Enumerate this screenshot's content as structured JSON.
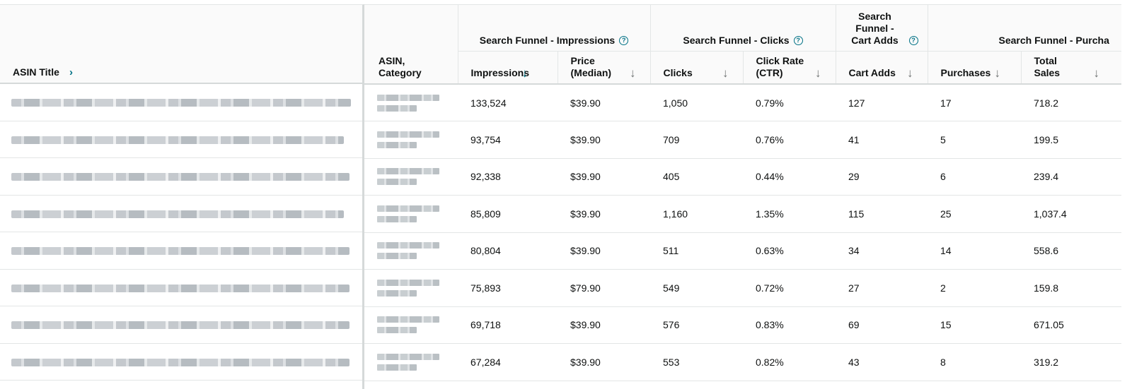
{
  "table": {
    "asin_title_header": "ASIN Title",
    "asin_category_header": "ASIN, Category",
    "groups": [
      {
        "label": "Search Funnel - Impressions"
      },
      {
        "label": "Search Funnel - Clicks"
      },
      {
        "label": "Search Funnel - Cart Adds"
      },
      {
        "label": "Search Funnel - Purcha"
      }
    ],
    "columns": [
      {
        "label": "Impressions"
      },
      {
        "label": "Price (Median)"
      },
      {
        "label": "Clicks"
      },
      {
        "label": "Click Rate (CTR)"
      },
      {
        "label": "Cart Adds"
      },
      {
        "label": "Purchases"
      },
      {
        "label": "Total Sales"
      }
    ],
    "title_blur_widths": [
      480,
      470,
      478,
      470,
      478,
      478,
      478,
      478
    ],
    "rows": [
      {
        "impressions": "133,524",
        "price": "$39.90",
        "clicks": "1,050",
        "ctr": "0.79%",
        "cart_adds": "127",
        "purchases": "17",
        "total_sales": "718.2"
      },
      {
        "impressions": "93,754",
        "price": "$39.90",
        "clicks": "709",
        "ctr": "0.76%",
        "cart_adds": "41",
        "purchases": "5",
        "total_sales": "199.5"
      },
      {
        "impressions": "92,338",
        "price": "$39.90",
        "clicks": "405",
        "ctr": "0.44%",
        "cart_adds": "29",
        "purchases": "6",
        "total_sales": "239.4"
      },
      {
        "impressions": "85,809",
        "price": "$39.90",
        "clicks": "1,160",
        "ctr": "1.35%",
        "cart_adds": "115",
        "purchases": "25",
        "total_sales": "1,037.4"
      },
      {
        "impressions": "80,804",
        "price": "$39.90",
        "clicks": "511",
        "ctr": "0.63%",
        "cart_adds": "34",
        "purchases": "14",
        "total_sales": "558.6"
      },
      {
        "impressions": "75,893",
        "price": "$79.90",
        "clicks": "549",
        "ctr": "0.72%",
        "cart_adds": "27",
        "purchases": "2",
        "total_sales": "159.8"
      },
      {
        "impressions": "69,718",
        "price": "$39.90",
        "clicks": "576",
        "ctr": "0.83%",
        "cart_adds": "69",
        "purchases": "15",
        "total_sales": "671.05"
      },
      {
        "impressions": "67,284",
        "price": "$39.90",
        "clicks": "553",
        "ctr": "0.82%",
        "cart_adds": "43",
        "purchases": "8",
        "total_sales": "319.2"
      }
    ],
    "icons": {
      "help": "help-circle-icon",
      "sort": "arrow-down-icon",
      "expand": "chevron-right-icon"
    },
    "accent_color": "#007185"
  }
}
